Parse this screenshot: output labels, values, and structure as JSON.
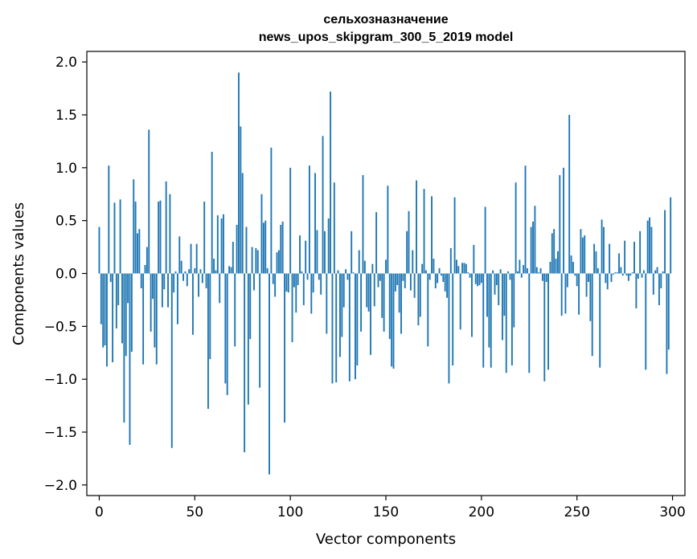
{
  "chart_data": {
    "type": "bar",
    "title": "сельхозназначение",
    "subtitle": "news_upos_skipgram_300_5_2019 model",
    "xlabel": "Vector components",
    "ylabel": "Components values",
    "xlim": [
      -6.5,
      306.5
    ],
    "ylim": [
      -2.1,
      2.1
    ],
    "grid": false,
    "bar_color": "#1f77b4",
    "x_ticks": [
      {
        "value": 0,
        "label": "0"
      },
      {
        "value": 50,
        "label": "50"
      },
      {
        "value": 100,
        "label": "100"
      },
      {
        "value": 150,
        "label": "150"
      },
      {
        "value": 200,
        "label": "200"
      },
      {
        "value": 250,
        "label": "250"
      },
      {
        "value": 300,
        "label": "300"
      }
    ],
    "y_ticks": [
      {
        "value": 2.0,
        "label": "2.0"
      },
      {
        "value": 1.5,
        "label": "1.5"
      },
      {
        "value": 1.0,
        "label": "1.0"
      },
      {
        "value": 0.5,
        "label": "0.5"
      },
      {
        "value": 0.0,
        "label": "0.0"
      },
      {
        "value": -0.5,
        "label": "−0.5"
      },
      {
        "value": -1.0,
        "label": "−1.0"
      },
      {
        "value": -1.5,
        "label": "−1.5"
      },
      {
        "value": -2.0,
        "label": "−2.0"
      }
    ],
    "values": [
      0.44,
      -0.48,
      -0.7,
      -0.68,
      -0.88,
      1.02,
      -0.08,
      -0.84,
      0.67,
      -0.52,
      -0.3,
      0.7,
      -0.66,
      -1.41,
      -0.78,
      -0.28,
      -1.62,
      -0.74,
      0.89,
      0.68,
      0.38,
      0.42,
      -0.14,
      -0.86,
      0.08,
      0.25,
      1.36,
      -0.55,
      -0.24,
      -0.7,
      -0.86,
      0.68,
      0.69,
      -0.32,
      -0.15,
      0.87,
      -0.32,
      0.75,
      -1.65,
      -0.18,
      0.02,
      -0.48,
      0.35,
      0.12,
      -0.07,
      0.02,
      -0.12,
      0.04,
      0.28,
      -0.58,
      0.05,
      0.28,
      -0.22,
      0.04,
      -0.09,
      0.68,
      -0.14,
      -1.28,
      -0.81,
      1.15,
      0.14,
      0.03,
      0.55,
      -0.28,
      0.52,
      0.56,
      -1.04,
      -1.15,
      0.07,
      0.06,
      0.3,
      -0.69,
      0.46,
      1.9,
      1.39,
      0.95,
      -1.69,
      0.44,
      -1.24,
      -0.62,
      0.25,
      -0.16,
      0.24,
      0.22,
      -1.08,
      0.75,
      0.48,
      0.5,
      0.05,
      -1.9,
      1.19,
      -0.1,
      -0.22,
      0.2,
      0.22,
      0.46,
      0.49,
      -1.41,
      -0.17,
      -0.18,
      1.0,
      -0.65,
      -0.13,
      -0.37,
      -0.11,
      0.36,
      0.02,
      -0.3,
      0.31,
      -0.06,
      1.02,
      -0.38,
      -0.18,
      0.95,
      0.41,
      -0.06,
      -0.2,
      1.3,
      0.4,
      -0.57,
      0.52,
      1.72,
      -1.04,
      0.86,
      -1.03,
      0.03,
      -0.79,
      -0.6,
      -0.32,
      0.04,
      -0.06,
      -1.02,
      0.4,
      0.01,
      -1.0,
      -0.87,
      0.22,
      -0.55,
      0.93,
      0.12,
      -0.32,
      -0.36,
      -0.77,
      0.09,
      -0.31,
      0.58,
      -0.13,
      -0.07,
      -0.42,
      -0.55,
      0.13,
      0.83,
      -0.62,
      -0.88,
      -0.9,
      -0.17,
      -0.11,
      -0.37,
      -0.57,
      -0.07,
      -0.14,
      0.4,
      0.59,
      -0.16,
      0.22,
      -0.23,
      0.88,
      -0.49,
      -0.41,
      0.09,
      0.8,
      0.03,
      -0.69,
      -0.06,
      0.73,
      0.14,
      -0.14,
      -0.09,
      0.05,
      -0.02,
      -0.08,
      -0.17,
      -0.23,
      -1.04,
      0.24,
      -0.87,
      0.72,
      0.13,
      0.07,
      -0.53,
      0.1,
      0.1,
      0.09,
      0.01,
      -0.04,
      -0.6,
      0.27,
      -0.1,
      -0.12,
      -0.11,
      -0.09,
      -0.89,
      0.63,
      -0.41,
      -0.7,
      -0.89,
      0.03,
      -0.2,
      -0.11,
      -0.3,
      0.04,
      -0.63,
      -0.4,
      -0.94,
      0.02,
      -0.06,
      -0.87,
      -0.51,
      0.86,
      0.02,
      0.13,
      -0.04,
      0.08,
      1.02,
      0.05,
      -0.94,
      0.44,
      0.49,
      0.64,
      0.06,
      0.01,
      0.05,
      -0.07,
      -1.02,
      -0.08,
      -0.91,
      0.11,
      0.38,
      0.42,
      0.14,
      0.21,
      0.93,
      -0.4,
      1.0,
      -0.38,
      -0.13,
      1.5,
      0.17,
      0.11,
      -0.02,
      -0.12,
      -0.39,
      0.42,
      0.34,
      0.36,
      -0.22,
      -0.08,
      -0.45,
      -0.78,
      0.28,
      0.21,
      0.05,
      -0.89,
      0.51,
      0.44,
      -0.09,
      -0.15,
      0.28,
      -0.08,
      -0.01,
      0.01,
      0.01,
      0.19,
      0.06,
      -0.02,
      0.31,
      -0.02,
      -0.07,
      -0.02,
      0.01,
      0.3,
      -0.33,
      -0.05,
      0.4,
      -0.04,
      0.03,
      -0.91,
      0.5,
      0.53,
      0.44,
      -0.2,
      0.03,
      0.06,
      -0.3,
      -0.14,
      0.02,
      0.6,
      -0.95,
      -0.72,
      0.72
    ]
  }
}
